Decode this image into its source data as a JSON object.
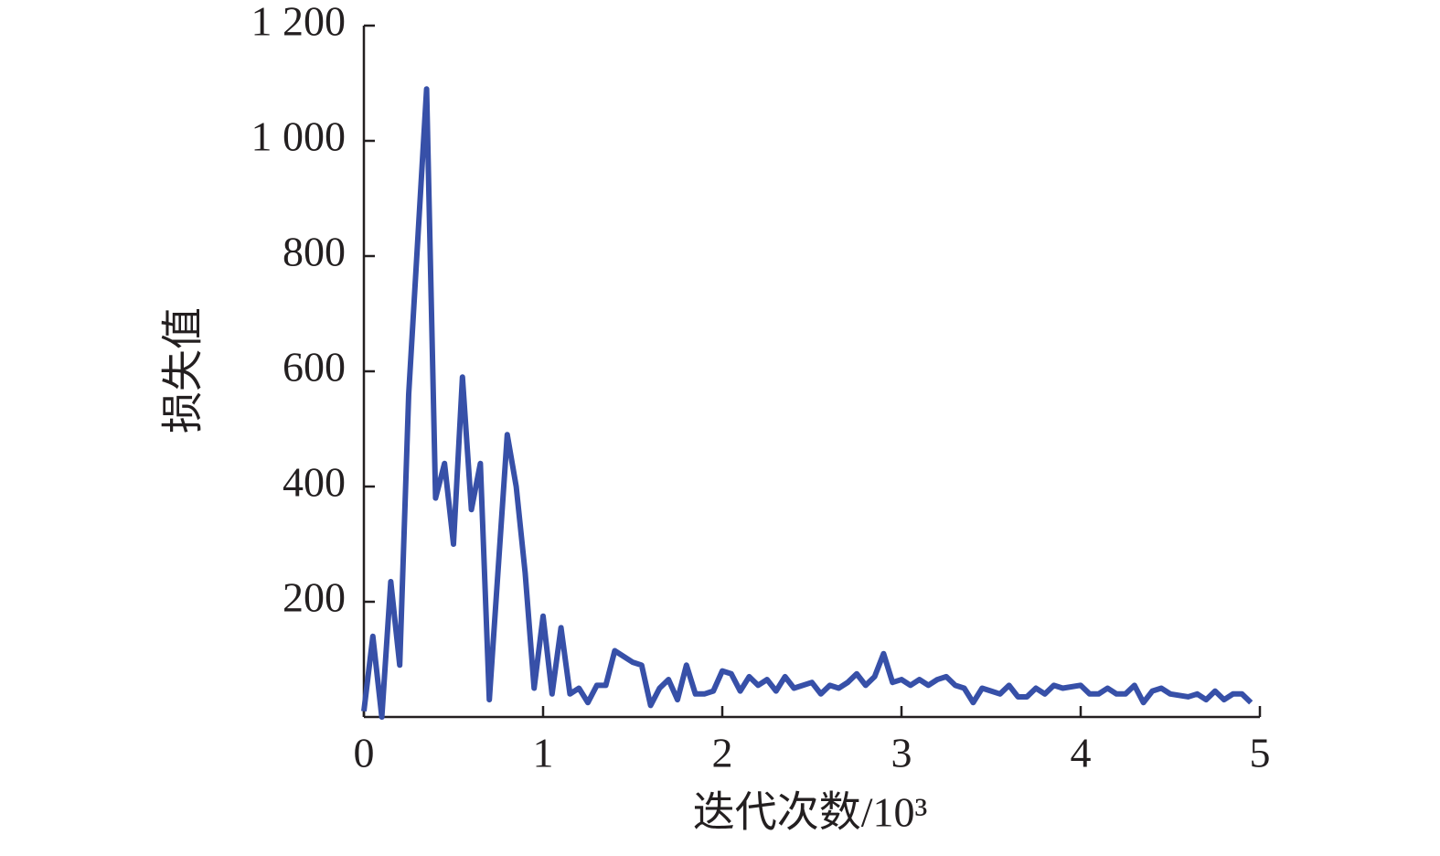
{
  "chart_data": {
    "type": "line",
    "xlabel": "迭代次数/10³",
    "ylabel": "损失值",
    "x": [
      0,
      0.05,
      0.1,
      0.15,
      0.2,
      0.25,
      0.35,
      0.4,
      0.45,
      0.5,
      0.55,
      0.6,
      0.65,
      0.7,
      0.8,
      0.85,
      0.9,
      0.95,
      1.0,
      1.05,
      1.1,
      1.15,
      1.2,
      1.25,
      1.3,
      1.35,
      1.4,
      1.5,
      1.55,
      1.6,
      1.65,
      1.7,
      1.75,
      1.8,
      1.85,
      1.9,
      1.95,
      2.0,
      2.05,
      2.1,
      2.15,
      2.2,
      2.25,
      2.3,
      2.35,
      2.4,
      2.5,
      2.55,
      2.6,
      2.65,
      2.7,
      2.75,
      2.8,
      2.85,
      2.9,
      2.95,
      3.0,
      3.05,
      3.1,
      3.15,
      3.2,
      3.25,
      3.3,
      3.35,
      3.4,
      3.45,
      3.5,
      3.55,
      3.6,
      3.65,
      3.7,
      3.75,
      3.8,
      3.85,
      3.9,
      4.0,
      4.05,
      4.1,
      4.15,
      4.2,
      4.25,
      4.3,
      4.35,
      4.4,
      4.45,
      4.5,
      4.6,
      4.65,
      4.7,
      4.75,
      4.8,
      4.85,
      4.9,
      4.95
    ],
    "series": [
      {
        "color": "#3750a8",
        "values": [
          10,
          140,
          0,
          235,
          90,
          560,
          1090,
          380,
          440,
          300,
          590,
          360,
          440,
          30,
          490,
          400,
          250,
          50,
          175,
          40,
          155,
          40,
          50,
          25,
          55,
          55,
          115,
          95,
          90,
          20,
          50,
          65,
          30,
          90,
          40,
          40,
          45,
          80,
          75,
          45,
          70,
          55,
          65,
          45,
          70,
          50,
          60,
          40,
          55,
          50,
          60,
          75,
          55,
          70,
          110,
          60,
          65,
          55,
          65,
          55,
          65,
          70,
          55,
          50,
          25,
          50,
          45,
          40,
          55,
          35,
          35,
          50,
          40,
          55,
          50,
          55,
          40,
          40,
          50,
          40,
          40,
          55,
          25,
          45,
          50,
          40,
          35,
          40,
          30,
          45,
          30,
          40,
          40,
          25
        ]
      }
    ],
    "xlim": [
      0,
      5
    ],
    "xticks": [
      0,
      1,
      2,
      3,
      4,
      5
    ],
    "ylim": [
      0,
      1200
    ],
    "yticks": [
      200,
      400,
      600,
      800,
      {
        "value": 1000,
        "label": "1 000"
      },
      {
        "value": 1200,
        "label": "1 200"
      }
    ]
  }
}
